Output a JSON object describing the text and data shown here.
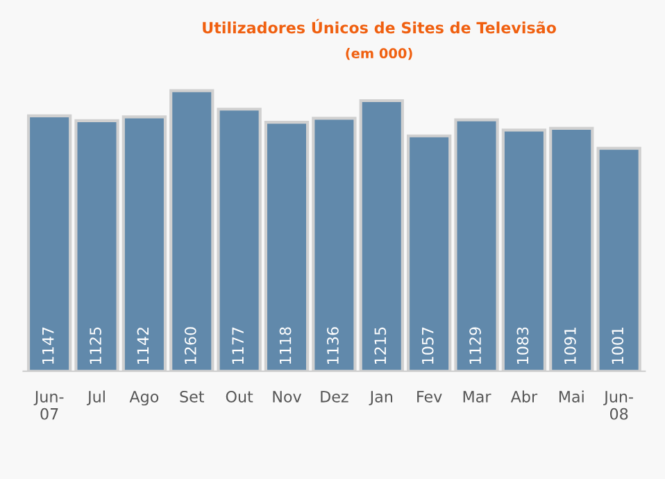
{
  "chart_data": {
    "type": "bar",
    "title": "Utilizadores Únicos de Sites de Televisão",
    "subtitle": "(em 000)",
    "categories": [
      "Jun-\n07",
      "Jul",
      "Ago",
      "Set",
      "Out",
      "Nov",
      "Dez",
      "Jan",
      "Fev",
      "Mar",
      "Abr",
      "Mai",
      "Jun-\n08"
    ],
    "values": [
      1147,
      1125,
      1142,
      1260,
      1177,
      1118,
      1136,
      1215,
      1057,
      1129,
      1083,
      1091,
      1001
    ],
    "color": "#6189ab",
    "data_labels": true,
    "grid": false,
    "legend": false,
    "tick_labels": "x"
  }
}
